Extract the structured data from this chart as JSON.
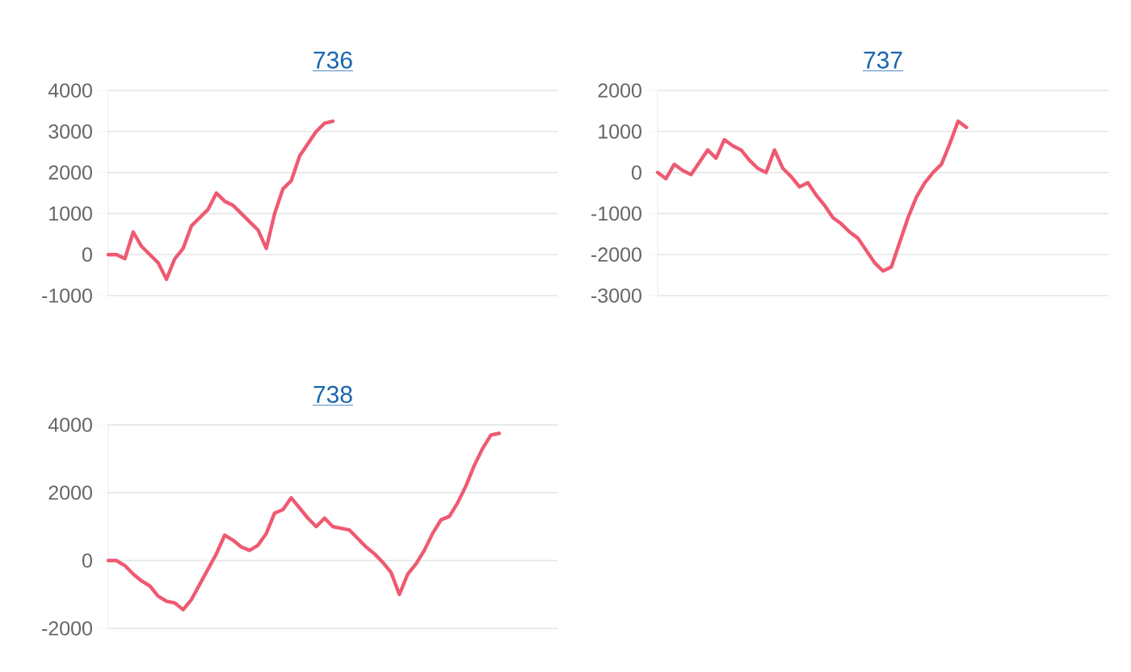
{
  "chart_data": [
    {
      "type": "line",
      "title": "736",
      "categories": [
        null,
        null,
        null,
        null,
        null,
        null,
        null,
        null,
        null,
        null,
        null,
        null,
        null,
        null,
        null,
        null,
        null,
        null,
        null,
        null,
        null,
        null,
        null,
        null,
        null,
        null,
        null,
        null,
        null,
        null,
        null,
        null,
        null,
        null,
        null,
        null,
        null,
        null,
        null,
        null,
        null,
        null,
        null,
        null,
        null,
        null,
        null,
        null,
        null,
        null,
        null,
        null,
        null,
        null,
        null
      ],
      "values": [
        0,
        0,
        -100,
        550,
        200,
        0,
        -200,
        -600,
        -100,
        150,
        700,
        900,
        1100,
        1500,
        1300,
        1200,
        1000,
        800,
        600,
        150,
        1000,
        1600,
        1800,
        2400,
        2700,
        3000,
        3200,
        3250,
        null,
        null,
        null,
        null,
        null,
        null,
        null,
        null,
        null,
        null,
        null,
        null,
        null,
        null,
        null,
        null,
        null,
        null,
        null,
        null,
        null,
        null,
        null,
        null,
        null,
        null,
        null
      ],
      "color": "#ee5a72",
      "ylim": [
        -1000,
        4000
      ],
      "yticks": [
        -1000,
        0,
        1000,
        2000,
        3000,
        4000
      ],
      "grid": "y",
      "tick_labels": "y"
    },
    {
      "type": "line",
      "title": "737",
      "categories": [
        null,
        null,
        null,
        null,
        null,
        null,
        null,
        null,
        null,
        null,
        null,
        null,
        null,
        null,
        null,
        null,
        null,
        null,
        null,
        null,
        null,
        null,
        null,
        null,
        null,
        null,
        null,
        null,
        null,
        null,
        null,
        null,
        null,
        null,
        null,
        null,
        null,
        null,
        null,
        null,
        null,
        null,
        null,
        null,
        null,
        null,
        null,
        null,
        null,
        null,
        null,
        null,
        null,
        null,
        null
      ],
      "values": [
        0,
        -150,
        200,
        50,
        -50,
        250,
        550,
        350,
        800,
        650,
        550,
        300,
        100,
        0,
        550,
        100,
        -100,
        -350,
        -250,
        -550,
        -800,
        -1100,
        -1250,
        -1450,
        -1600,
        -1900,
        -2200,
        -2400,
        -2300,
        -1700,
        -1100,
        -600,
        -250,
        0,
        200,
        700,
        1250,
        1100,
        null,
        null,
        null,
        null,
        null,
        null,
        null,
        null,
        null,
        null,
        null,
        null,
        null,
        null,
        null,
        null,
        null
      ],
      "color": "#ee5a72",
      "ylim": [
        -3000,
        2000
      ],
      "yticks": [
        -3000,
        -2000,
        -1000,
        0,
        1000,
        2000
      ],
      "grid": "y",
      "tick_labels": "y"
    },
    {
      "type": "line",
      "title": "738",
      "categories": [
        null,
        null,
        null,
        null,
        null,
        null,
        null,
        null,
        null,
        null,
        null,
        null,
        null,
        null,
        null,
        null,
        null,
        null,
        null,
        null,
        null,
        null,
        null,
        null,
        null,
        null,
        null,
        null,
        null,
        null,
        null,
        null,
        null,
        null,
        null,
        null,
        null,
        null,
        null,
        null,
        null,
        null,
        null,
        null,
        null,
        null,
        null,
        null,
        null,
        null,
        null,
        null,
        null,
        null,
        null
      ],
      "values": [
        0,
        0,
        -150,
        -400,
        -600,
        -750,
        -1050,
        -1200,
        -1250,
        -1450,
        -1150,
        -700,
        -250,
        200,
        750,
        600,
        400,
        300,
        450,
        800,
        1400,
        1500,
        1850,
        1550,
        1250,
        1000,
        1250,
        1000,
        950,
        900,
        650,
        400,
        200,
        -50,
        -350,
        -1000,
        -400,
        -100,
        300,
        800,
        1200,
        1300,
        1700,
        2200,
        2800,
        3300,
        3700,
        3750,
        null,
        null,
        null,
        null,
        null,
        null,
        null
      ],
      "color": "#ee5a72",
      "ylim": [
        -2000,
        4000
      ],
      "yticks": [
        -2000,
        0,
        2000,
        4000
      ],
      "grid": "y",
      "tick_labels": "y"
    }
  ]
}
